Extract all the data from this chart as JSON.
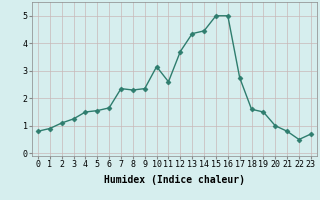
{
  "title": "",
  "xlabel": "Humidex (Indice chaleur)",
  "x": [
    0,
    1,
    2,
    3,
    4,
    5,
    6,
    7,
    8,
    9,
    10,
    11,
    12,
    13,
    14,
    15,
    16,
    17,
    18,
    19,
    20,
    21,
    22,
    23
  ],
  "y": [
    0.8,
    0.9,
    1.1,
    1.25,
    1.5,
    1.55,
    1.65,
    2.35,
    2.3,
    2.35,
    3.15,
    2.6,
    3.7,
    4.35,
    4.45,
    5.0,
    5.0,
    2.75,
    1.6,
    1.5,
    1.0,
    0.8,
    0.5,
    0.7
  ],
  "line_color": "#2e7d6e",
  "marker": "D",
  "marker_size": 2.5,
  "bg_color": "#d6eeee",
  "grid_color": "#c8b8b8",
  "ylim": [
    -0.1,
    5.5
  ],
  "xlim": [
    -0.5,
    23.5
  ],
  "yticks": [
    0,
    1,
    2,
    3,
    4,
    5
  ],
  "xticks": [
    0,
    1,
    2,
    3,
    4,
    5,
    6,
    7,
    8,
    9,
    10,
    11,
    12,
    13,
    14,
    15,
    16,
    17,
    18,
    19,
    20,
    21,
    22,
    23
  ],
  "xlabel_fontsize": 7,
  "tick_fontsize": 6,
  "linewidth": 1.0
}
